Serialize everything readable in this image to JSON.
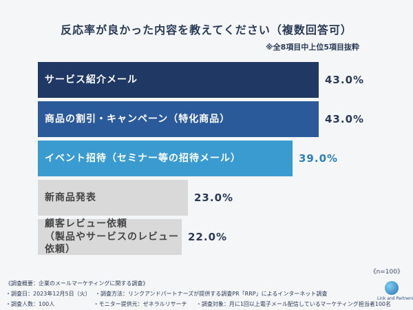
{
  "title": "反応率が良かった内容を教えてください（複数回答可）",
  "note": "※全8項目中上位5項目抜粋",
  "chart_data": {
    "type": "bar",
    "orientation": "horizontal",
    "categories": [
      "サービス紹介メール",
      "商品の割引・キャンペーン（特化商品）",
      "イベント招待（セミナー等の招待メール）",
      "新商品発表",
      "顧客レビュー依頼\n（製品やサービスのレビュー依頼）"
    ],
    "values": [
      43.0,
      43.0,
      39.0,
      23.0,
      22.0
    ],
    "value_labels": [
      "43.0%",
      "43.0%",
      "39.0%",
      "23.0%",
      "22.0%"
    ],
    "bar_colors": [
      "#1f3864",
      "#2a5a9a",
      "#3a9bd0",
      "#d9d9d9",
      "#d9d9d9"
    ],
    "label_colors": [
      "#ffffff",
      "#ffffff",
      "#ffffff",
      "#444444",
      "#444444"
    ],
    "value_colors": [
      "#2a3a55",
      "#2a3a55",
      "#2a80b8",
      "#2a3a55",
      "#2a3a55"
    ],
    "xlim": [
      0,
      43.0
    ]
  },
  "sample": "《n=100》",
  "footer": {
    "survey_title": "《調査概要：企業のメールマーケティングに関する調査》",
    "survey_date": "・調査日：2023年12月5日（火）",
    "survey_method": "・調査方法：リンクアンドパートナーズが提供する調査PR「RRP」によるインターネット調査",
    "respondents": "・調査人数：100人",
    "monitor": "・モニター提供元：ゼネラルリサーチ",
    "target": "・調査対象：月に1回以上電子メール配信しているマーケティング担当者100名"
  },
  "logo_text": "Link and Partners"
}
